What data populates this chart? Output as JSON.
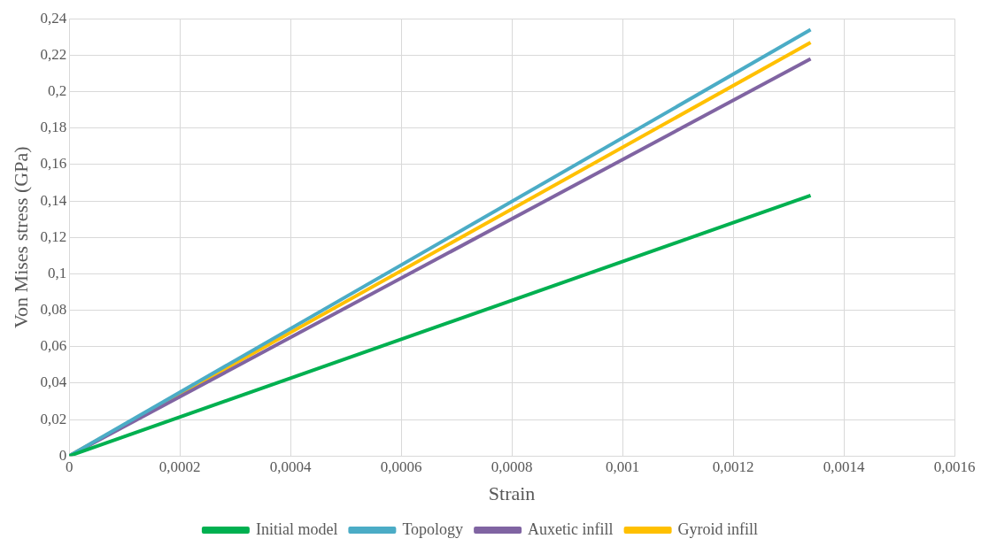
{
  "chart_data": {
    "type": "line",
    "xlabel": "Strain",
    "ylabel": "Von Mises stress (GPa)",
    "xlim": [
      0,
      0.0016
    ],
    "xticks": [
      0,
      {
        "value": 0.0002,
        "label": "0,0002"
      },
      {
        "value": 0.0004,
        "label": "0,0004"
      },
      {
        "value": 0.0006,
        "label": "0,0006"
      },
      {
        "value": 0.0008,
        "label": "0,0008"
      },
      {
        "value": 0.001,
        "label": "0,001"
      },
      {
        "value": 0.0012,
        "label": "0,0012"
      },
      {
        "value": 0.0014,
        "label": "0,0014"
      },
      {
        "value": 0.0016,
        "label": "0,0016"
      }
    ],
    "ylim": [
      0,
      0.24
    ],
    "yticks": [
      0,
      {
        "value": 0.02,
        "label": "0,02"
      },
      {
        "value": 0.04,
        "label": "0,04"
      },
      {
        "value": 0.06,
        "label": "0,06"
      },
      {
        "value": 0.08,
        "label": "0,08"
      },
      {
        "value": 0.1,
        "label": "0,1"
      },
      {
        "value": 0.12,
        "label": "0,12"
      },
      {
        "value": 0.14,
        "label": "0,14"
      },
      {
        "value": 0.16,
        "label": "0,16"
      },
      {
        "value": 0.18,
        "label": "0,18"
      },
      {
        "value": 0.2,
        "label": "0,2"
      },
      {
        "value": 0.22,
        "label": "0,22"
      },
      {
        "value": 0.24,
        "label": "0,24"
      }
    ],
    "x": [
      0,
      0.00134
    ],
    "grid": true,
    "legend": "bottom",
    "marker": "none",
    "line_style": "solid",
    "series": [
      {
        "name": "Initial model",
        "color": "#00b050",
        "values": [
          0,
          0.143
        ]
      },
      {
        "name": "Topology",
        "color": "#4bacc6",
        "values": [
          0,
          0.234
        ]
      },
      {
        "name": "Auxetic infill",
        "color": "#8064a2",
        "values": [
          0,
          0.218
        ]
      },
      {
        "name": "Gyroid infill",
        "color": "#ffc000",
        "values": [
          0,
          0.227
        ]
      }
    ]
  }
}
